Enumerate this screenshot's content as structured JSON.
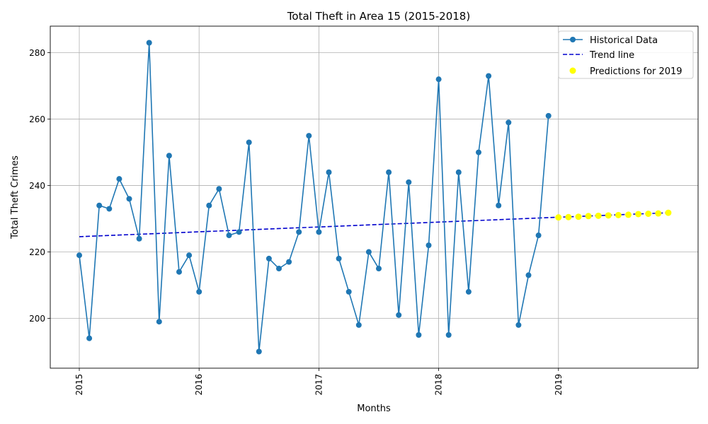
{
  "chart_data": {
    "type": "line",
    "title": "Total Theft in Area 15 (2015-2018)",
    "xlabel": "Months",
    "ylabel": "Total Theft Crimes",
    "x_ticks": [
      "2015",
      "2016",
      "2017",
      "2018",
      "2019"
    ],
    "y_ticks": [
      200,
      220,
      240,
      260,
      280
    ],
    "ylim": [
      185,
      288
    ],
    "grid": true,
    "legend_position": "top-right",
    "series": [
      {
        "name": "Historical Data",
        "style": "line-with-markers",
        "color": "#1f77b4",
        "x": [
          "2015-01",
          "2015-02",
          "2015-03",
          "2015-04",
          "2015-05",
          "2015-06",
          "2015-07",
          "2015-08",
          "2015-09",
          "2015-10",
          "2015-11",
          "2015-12",
          "2016-01",
          "2016-02",
          "2016-03",
          "2016-04",
          "2016-05",
          "2016-06",
          "2016-07",
          "2016-08",
          "2016-09",
          "2016-10",
          "2016-11",
          "2016-12",
          "2017-01",
          "2017-02",
          "2017-03",
          "2017-04",
          "2017-05",
          "2017-06",
          "2017-07",
          "2017-08",
          "2017-09",
          "2017-10",
          "2017-11",
          "2017-12",
          "2018-01",
          "2018-02",
          "2018-03",
          "2018-04",
          "2018-05",
          "2018-06",
          "2018-07",
          "2018-08",
          "2018-09",
          "2018-10",
          "2018-11",
          "2018-12"
        ],
        "values": [
          219,
          194,
          234,
          233,
          242,
          236,
          224,
          283,
          199,
          249,
          214,
          219,
          208,
          234,
          239,
          225,
          226,
          253,
          190,
          218,
          215,
          217,
          226,
          255,
          226,
          244,
          218,
          208,
          198,
          220,
          215,
          244,
          201,
          241,
          195,
          222,
          272,
          195,
          244,
          208,
          250,
          273,
          234,
          259,
          198,
          213,
          225,
          261
        ]
      },
      {
        "name": "Trend line",
        "style": "dashed",
        "color": "#0000cd",
        "x": [
          "2015-01",
          "2019-12"
        ],
        "values": [
          224.6,
          231.8
        ]
      },
      {
        "name": "Predictions for 2019",
        "style": "scatter",
        "color": "#ffff00",
        "x": [
          "2019-01",
          "2019-02",
          "2019-03",
          "2019-04",
          "2019-05",
          "2019-06",
          "2019-07",
          "2019-08",
          "2019-09",
          "2019-10",
          "2019-11",
          "2019-12"
        ],
        "values": [
          230.4,
          230.5,
          230.6,
          230.8,
          230.9,
          231.0,
          231.1,
          231.2,
          231.4,
          231.5,
          231.6,
          231.8
        ]
      }
    ]
  }
}
